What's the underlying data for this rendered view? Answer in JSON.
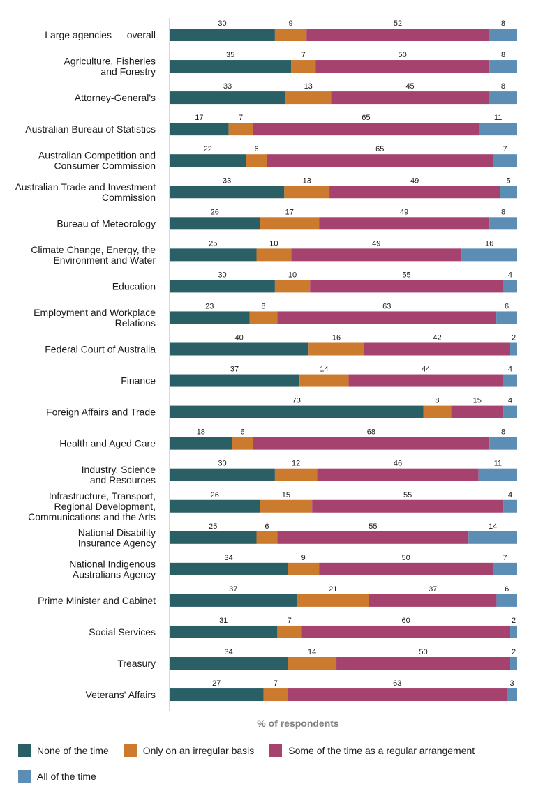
{
  "chart_data": {
    "type": "bar",
    "orientation": "horizontal",
    "stacked": true,
    "xlabel": "% of respondents",
    "ylabel": "",
    "xlim": [
      0,
      100
    ],
    "legend_position": "bottom",
    "categories": [
      [
        "Large agencies — overall"
      ],
      [
        "Agriculture, Fisheries",
        "and Forestry"
      ],
      [
        "Attorney-General's"
      ],
      [
        "Australian Bureau of Statistics"
      ],
      [
        "Australian Competition and",
        "Consumer Commission"
      ],
      [
        "Australian Trade and Investment",
        "Commission"
      ],
      [
        "Bureau of Meteorology"
      ],
      [
        "Climate Change, Energy, the",
        "Environment and Water"
      ],
      [
        "Education"
      ],
      [
        "Employment and Workplace",
        "Relations"
      ],
      [
        "Federal Court of Australia"
      ],
      [
        "Finance"
      ],
      [
        "Foreign Affairs and Trade"
      ],
      [
        "Health and Aged Care"
      ],
      [
        "Industry, Science",
        "and Resources"
      ],
      [
        "Infrastructure, Transport,",
        "Regional Development,",
        "Communications and the Arts"
      ],
      [
        "National Disability",
        "Insurance Agency"
      ],
      [
        "National Indigenous",
        "Australians Agency"
      ],
      [
        "Prime Minister and Cabinet"
      ],
      [
        "Social Services"
      ],
      [
        "Treasury"
      ],
      [
        "Veterans' Affairs"
      ]
    ],
    "series": [
      {
        "name": "None of the time",
        "color": "#2a5f66",
        "values": [
          30,
          35,
          33,
          17,
          22,
          33,
          26,
          25,
          30,
          23,
          40,
          37,
          73,
          18,
          30,
          26,
          25,
          34,
          37,
          31,
          34,
          27
        ]
      },
      {
        "name": "Only on an irregular basis",
        "color": "#cc7a2e",
        "values": [
          9,
          7,
          13,
          7,
          6,
          13,
          17,
          10,
          10,
          8,
          16,
          14,
          8,
          6,
          12,
          15,
          6,
          9,
          21,
          7,
          14,
          7
        ]
      },
      {
        "name": "Some of the time as a regular arrangement",
        "color": "#a6426e",
        "values": [
          52,
          50,
          45,
          65,
          65,
          49,
          49,
          49,
          55,
          63,
          42,
          44,
          15,
          68,
          46,
          55,
          55,
          50,
          37,
          60,
          50,
          63
        ]
      },
      {
        "name": "All of the time",
        "color": "#5b8db5",
        "values": [
          8,
          8,
          8,
          11,
          7,
          5,
          8,
          16,
          4,
          6,
          2,
          4,
          4,
          8,
          11,
          4,
          14,
          7,
          6,
          2,
          2,
          3
        ]
      }
    ]
  }
}
